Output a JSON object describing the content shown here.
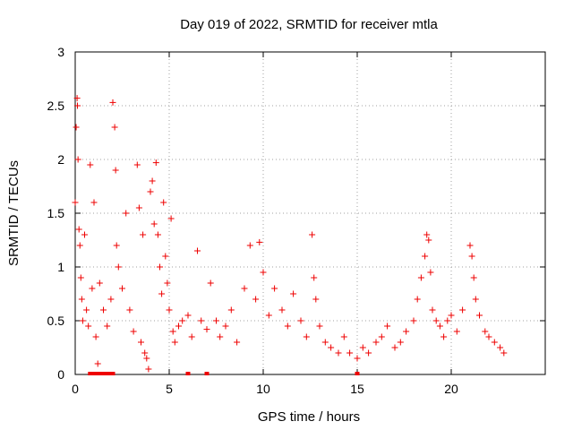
{
  "chart_data": {
    "type": "scatter",
    "title": "Day 019 of 2022, SRMTID for receiver mtla",
    "xlabel": "GPS time / hours",
    "ylabel": "SRMTID / TECUs",
    "xlim": [
      0,
      25
    ],
    "ylim": [
      0,
      3
    ],
    "xticks": [
      0,
      5,
      10,
      15,
      20
    ],
    "xtick_labels": [
      "0",
      "5",
      "10",
      "15",
      "20"
    ],
    "yticks": [
      0,
      0.5,
      1,
      1.5,
      2,
      2.5,
      3
    ],
    "ytick_labels": [
      "0",
      "0.5",
      "1",
      "1.5",
      "2",
      "2.5",
      "3"
    ],
    "grid": true,
    "marker": "+",
    "series": [
      {
        "name": "mtla",
        "color": "#ee0000",
        "x": [
          0.0,
          0.05,
          0.1,
          0.12,
          0.15,
          0.2,
          0.25,
          0.3,
          0.35,
          0.4,
          0.5,
          0.6,
          0.7,
          0.8,
          0.9,
          1.0,
          1.1,
          1.2,
          1.3,
          1.5,
          1.7,
          1.9,
          2.0,
          2.1,
          2.15,
          2.2,
          2.3,
          2.5,
          2.7,
          2.9,
          3.1,
          3.3,
          3.4,
          3.5,
          3.6,
          3.7,
          3.8,
          3.9,
          4.0,
          4.1,
          4.2,
          4.3,
          4.4,
          4.5,
          4.6,
          4.7,
          4.8,
          4.9,
          5.0,
          5.1,
          5.2,
          5.3,
          5.5,
          5.7,
          6.0,
          6.2,
          6.5,
          6.7,
          7.0,
          7.2,
          7.5,
          7.7,
          8.0,
          8.3,
          8.6,
          9.0,
          9.3,
          9.6,
          9.8,
          10.0,
          10.3,
          10.6,
          11.0,
          11.3,
          11.6,
          12.0,
          12.3,
          12.6,
          12.7,
          12.8,
          13.0,
          13.3,
          13.6,
          14.0,
          14.3,
          14.6,
          15.0,
          15.3,
          15.6,
          16.0,
          16.3,
          16.6,
          17.0,
          17.3,
          17.6,
          18.0,
          18.2,
          18.4,
          18.6,
          18.7,
          18.8,
          18.9,
          19.0,
          19.2,
          19.4,
          19.6,
          19.8,
          20.0,
          20.3,
          20.6,
          21.0,
          21.1,
          21.2,
          21.3,
          21.5,
          21.8,
          22.0,
          22.3,
          22.6,
          22.8
        ],
        "y": [
          1.6,
          2.3,
          2.57,
          2.5,
          2.0,
          1.35,
          1.2,
          0.9,
          0.7,
          0.5,
          1.3,
          0.6,
          0.45,
          1.95,
          0.8,
          1.6,
          0.35,
          0.1,
          0.85,
          0.6,
          0.45,
          0.7,
          2.53,
          2.3,
          1.9,
          1.2,
          1.0,
          0.8,
          1.5,
          0.6,
          0.4,
          1.95,
          1.55,
          0.3,
          1.3,
          0.2,
          0.15,
          0.05,
          1.7,
          1.8,
          1.4,
          1.97,
          1.3,
          1.0,
          0.75,
          1.6,
          1.1,
          0.85,
          0.6,
          1.45,
          0.4,
          0.3,
          0.45,
          0.5,
          0.55,
          0.35,
          1.15,
          0.5,
          0.42,
          0.85,
          0.5,
          0.35,
          0.45,
          0.6,
          0.3,
          0.8,
          1.2,
          0.7,
          1.23,
          0.95,
          0.55,
          0.8,
          0.6,
          0.45,
          0.75,
          0.5,
          0.35,
          1.3,
          0.9,
          0.7,
          0.45,
          0.3,
          0.25,
          0.2,
          0.35,
          0.2,
          0.15,
          0.25,
          0.2,
          0.3,
          0.35,
          0.45,
          0.25,
          0.3,
          0.4,
          0.5,
          0.7,
          0.9,
          1.1,
          1.3,
          1.25,
          0.95,
          0.6,
          0.5,
          0.45,
          0.35,
          0.5,
          0.55,
          0.4,
          0.6,
          1.2,
          1.1,
          0.9,
          0.7,
          0.55,
          0.4,
          0.35,
          0.3,
          0.25,
          0.2
        ]
      }
    ],
    "zero_markers_x": [
      0.8,
      0.9,
      1.0,
      1.2,
      1.3,
      1.4,
      1.6,
      1.7,
      1.8,
      2.0,
      6.0,
      7.0,
      15.0
    ]
  }
}
